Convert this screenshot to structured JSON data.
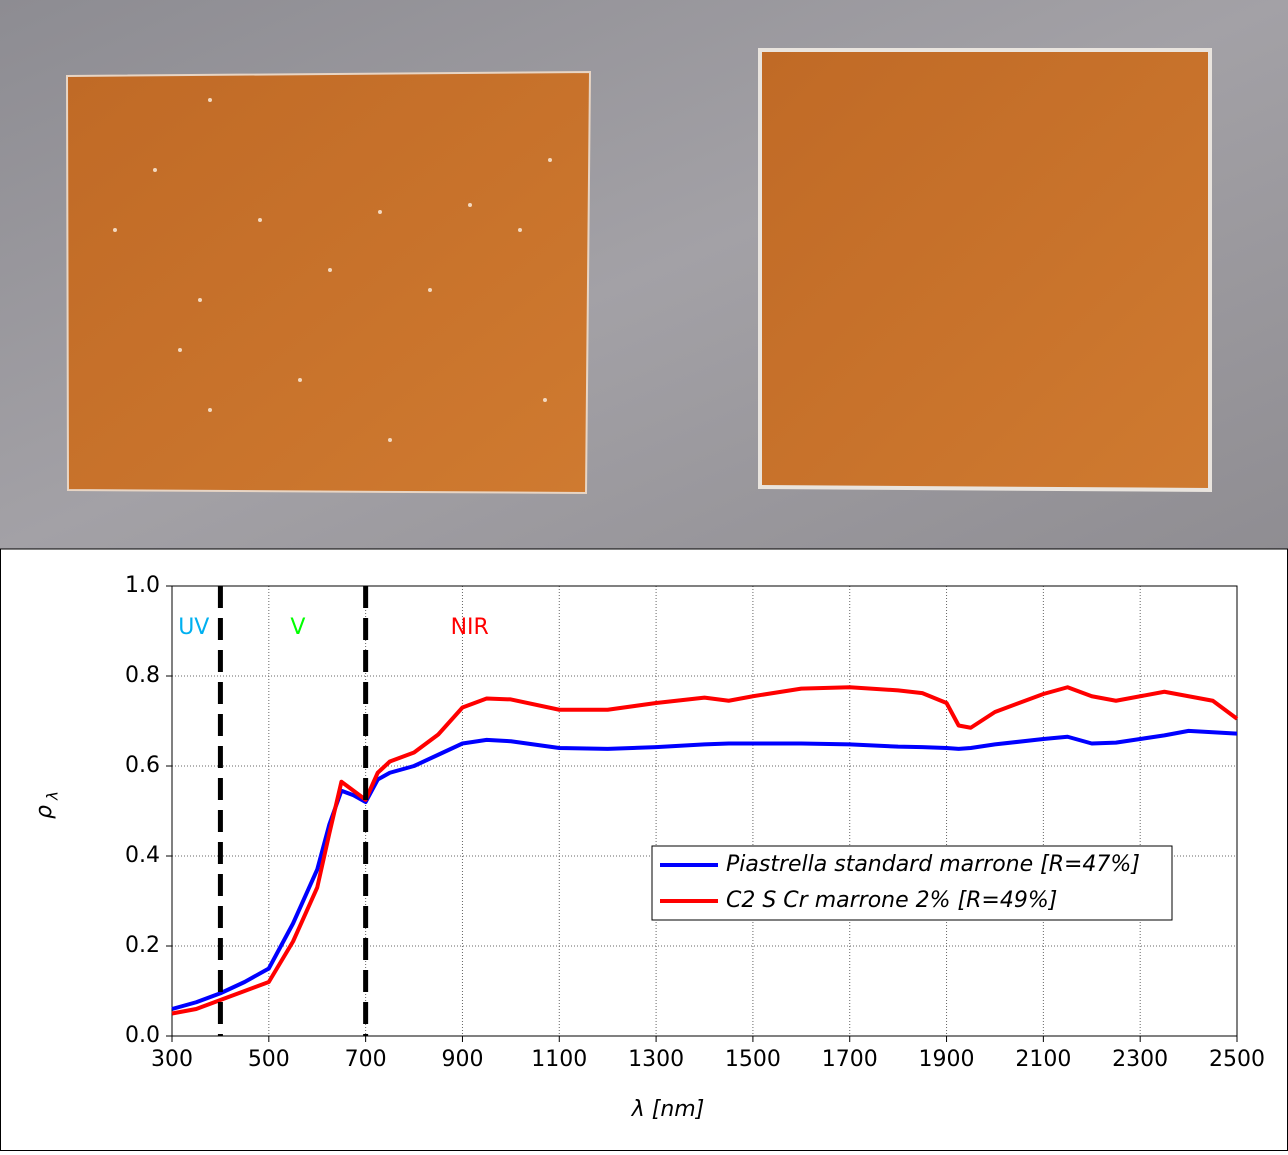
{
  "chart_data": {
    "type": "line",
    "ylabel": "ρ",
    "ylabel_sub": "λ",
    "xlabel": "λ  [nm]",
    "x": [
      300,
      350,
      400,
      450,
      500,
      550,
      600,
      625,
      650,
      675,
      700,
      725,
      750,
      800,
      850,
      900,
      950,
      1000,
      1100,
      1200,
      1300,
      1400,
      1450,
      1500,
      1600,
      1700,
      1800,
      1850,
      1900,
      1925,
      1950,
      2000,
      2100,
      2150,
      2200,
      2250,
      2300,
      2350,
      2400,
      2450,
      2500
    ],
    "series": [
      {
        "name": "Piastrella standard marrone [R=47%]",
        "color": "#0000ff",
        "values": [
          0.06,
          0.075,
          0.095,
          0.12,
          0.15,
          0.25,
          0.37,
          0.47,
          0.545,
          0.535,
          0.52,
          0.57,
          0.585,
          0.6,
          0.625,
          0.65,
          0.658,
          0.655,
          0.64,
          0.638,
          0.642,
          0.648,
          0.65,
          0.65,
          0.65,
          0.648,
          0.643,
          0.642,
          0.64,
          0.638,
          0.64,
          0.648,
          0.66,
          0.665,
          0.65,
          0.652,
          0.66,
          0.668,
          0.678,
          0.675,
          0.672
        ]
      },
      {
        "name": "C2 S Cr marrone 2% [R=49%]",
        "color": "#ff0000",
        "values": [
          0.05,
          0.06,
          0.08,
          0.1,
          0.12,
          0.21,
          0.33,
          0.45,
          0.565,
          0.545,
          0.525,
          0.585,
          0.61,
          0.63,
          0.67,
          0.73,
          0.75,
          0.748,
          0.725,
          0.725,
          0.74,
          0.752,
          0.745,
          0.755,
          0.772,
          0.775,
          0.768,
          0.762,
          0.74,
          0.69,
          0.685,
          0.72,
          0.76,
          0.775,
          0.755,
          0.745,
          0.755,
          0.765,
          0.755,
          0.745,
          0.705
        ]
      }
    ],
    "dividers": [
      400,
      700
    ],
    "annotations": [
      {
        "text": "UV",
        "x": 345,
        "color": "#00b0f0"
      },
      {
        "text": "V",
        "x": 560,
        "color": "#00ff00"
      },
      {
        "text": "NIR",
        "x": 915,
        "color": "#ff0000"
      }
    ],
    "xlim": [
      300,
      2500
    ],
    "xticks": [
      300,
      500,
      700,
      900,
      1100,
      1300,
      1500,
      1700,
      1900,
      2100,
      2300,
      2500
    ],
    "ylim": [
      0,
      1
    ],
    "yticks": [
      {
        "value": 0,
        "label": "0.0"
      },
      0.2,
      0.4,
      0.6,
      0.8,
      {
        "value": 1,
        "label": "1.0"
      }
    ],
    "grid": true
  }
}
